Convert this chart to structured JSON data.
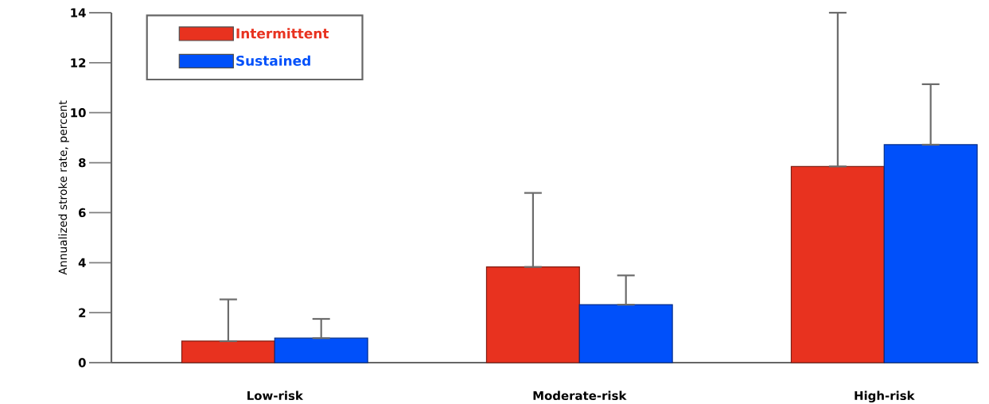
{
  "chart_data": {
    "type": "bar",
    "ylabel": "Annualized stroke rate, percent",
    "categories": [
      "Low-risk",
      "Moderate-risk",
      "High-risk"
    ],
    "series": [
      {
        "name": "Intermittent",
        "color": "#e8321f",
        "values": [
          0.86,
          3.83,
          7.85
        ],
        "errors": [
          [
            0.86,
            2.53
          ],
          [
            3.83,
            6.79
          ],
          [
            7.85,
            14.0
          ]
        ]
      },
      {
        "name": "Sustained",
        "color": "#0050fa",
        "values": [
          0.98,
          2.32,
          8.72
        ],
        "errors": [
          [
            0.98,
            1.75
          ],
          [
            2.32,
            3.49
          ],
          [
            8.72,
            11.14
          ]
        ]
      }
    ],
    "ylim": [
      0,
      14
    ],
    "yticks": [
      0,
      2,
      4,
      6,
      8,
      10,
      12,
      14
    ],
    "legend": "top left",
    "grid": false
  }
}
